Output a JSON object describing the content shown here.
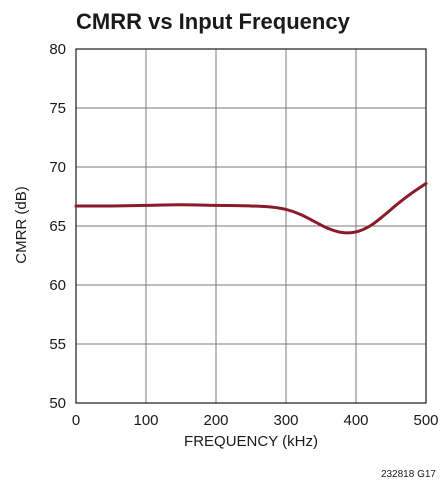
{
  "chart_data": {
    "type": "line",
    "title": "CMRR vs Input Frequency",
    "xlabel": "FREQUENCY (kHz)",
    "ylabel": "CMRR (dB)",
    "xlim": [
      0,
      500
    ],
    "ylim": [
      50,
      80
    ],
    "x_ticks": [
      0,
      100,
      200,
      300,
      400,
      500
    ],
    "y_ticks": [
      50,
      55,
      60,
      65,
      70,
      75,
      80
    ],
    "grid": true,
    "figure_code": "232818 G17",
    "line_color": "#8b1a2b",
    "series": [
      {
        "x": [
          0,
          50,
          100,
          150,
          200,
          250,
          280,
          300,
          320,
          340,
          360,
          380,
          400,
          420,
          440,
          460,
          480,
          500
        ],
        "values": [
          66.7,
          66.7,
          66.75,
          66.8,
          66.75,
          66.7,
          66.6,
          66.4,
          66.0,
          65.4,
          64.8,
          64.45,
          64.5,
          65.0,
          65.9,
          66.9,
          67.8,
          68.6
        ]
      }
    ]
  }
}
